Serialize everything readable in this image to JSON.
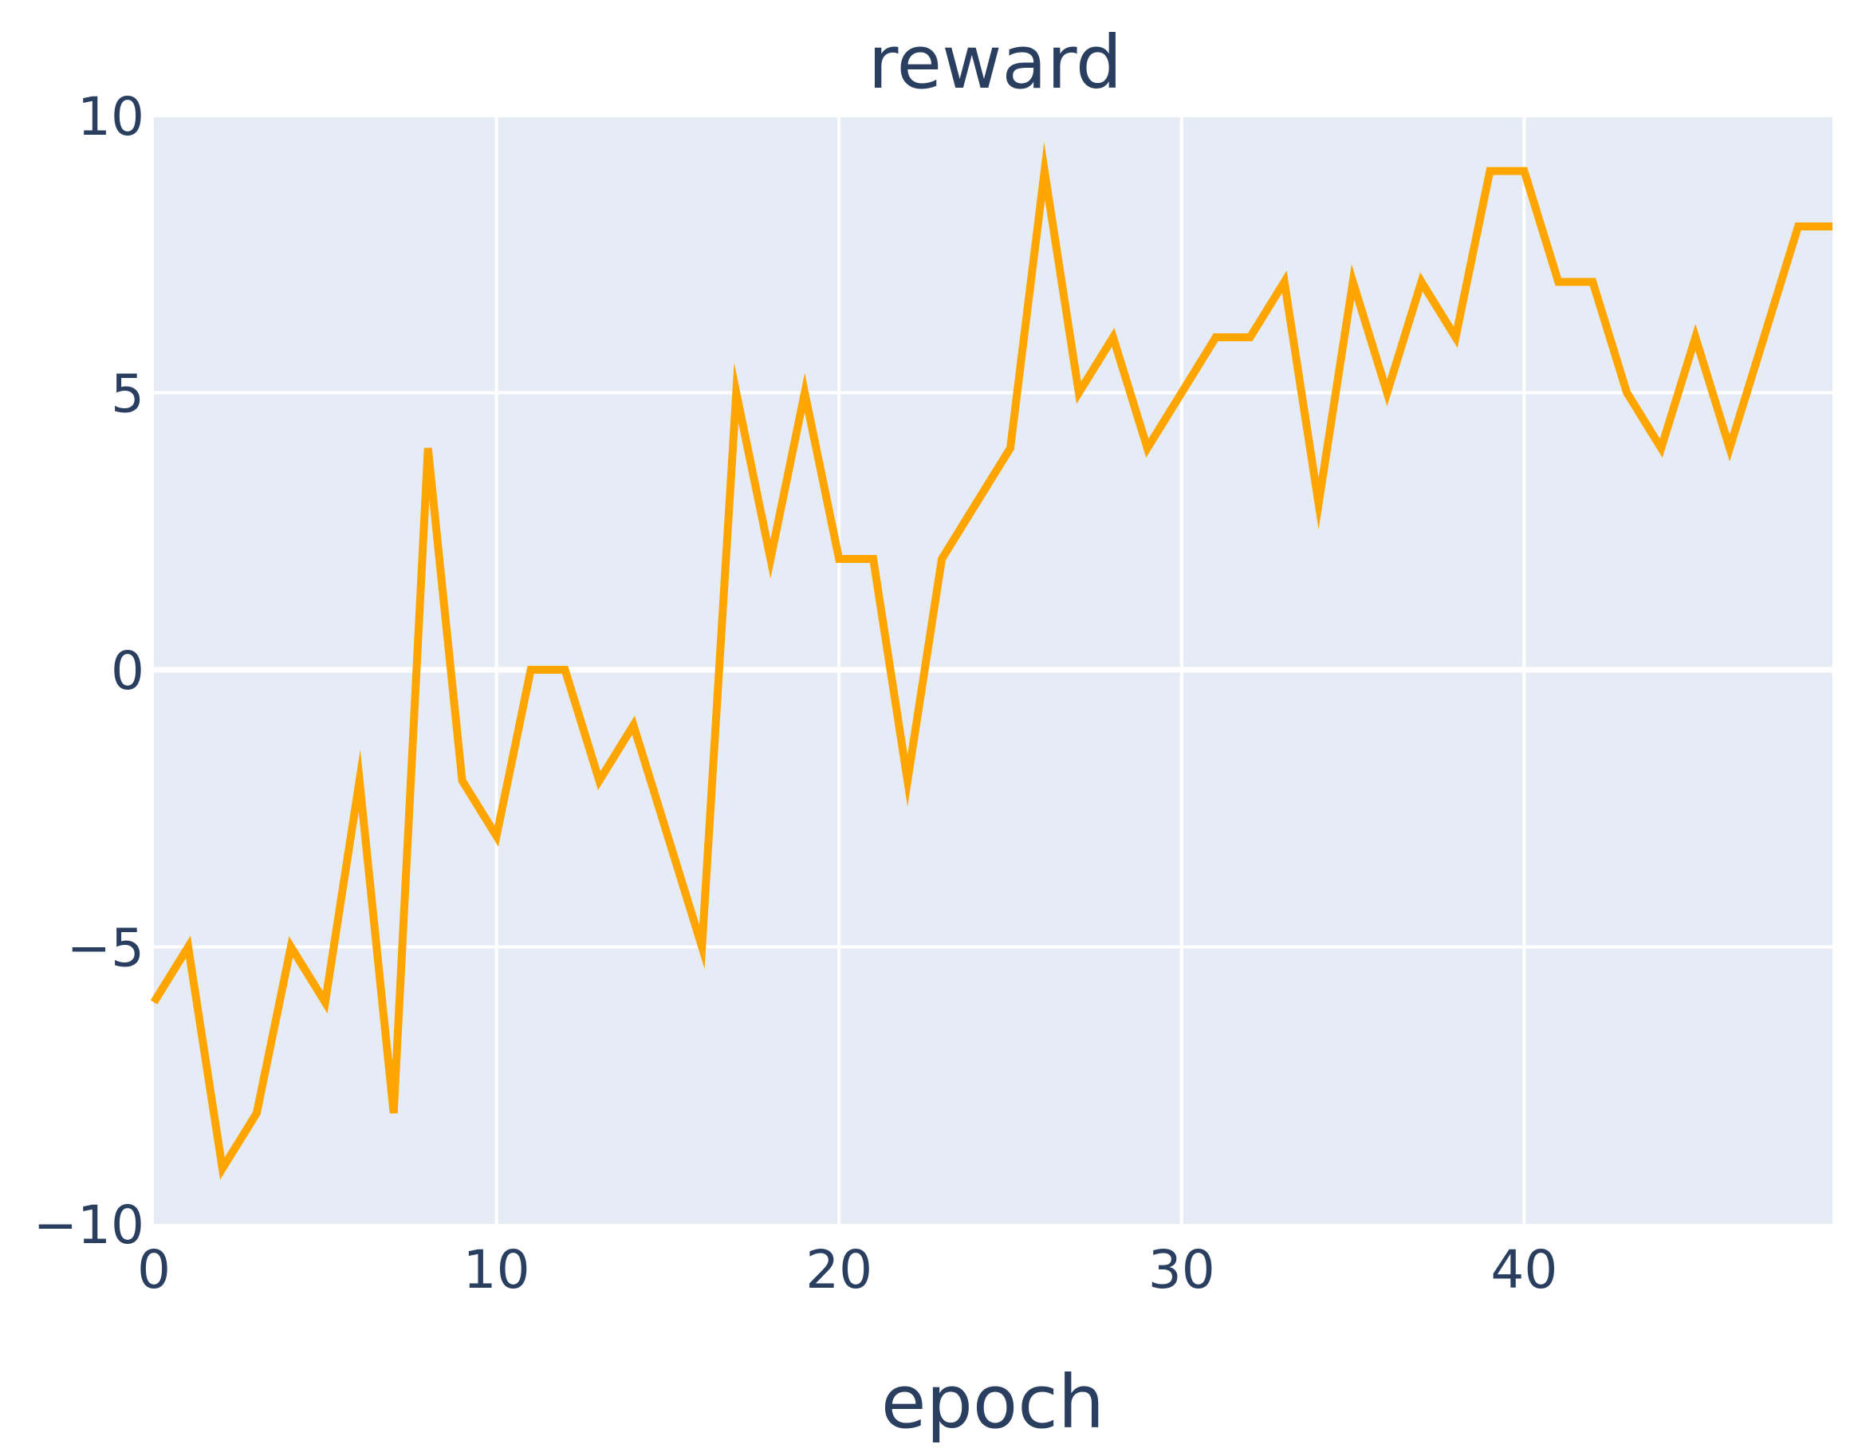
{
  "chart_data": {
    "type": "line",
    "title": "reward",
    "xlabel": "epoch",
    "ylabel": "",
    "xlim": [
      0,
      49
    ],
    "ylim": [
      -10,
      10
    ],
    "x_ticks": [
      0,
      10,
      20,
      30,
      40
    ],
    "x_tick_labels": [
      "0",
      "10",
      "20",
      "30",
      "40"
    ],
    "y_ticks": [
      -10,
      -5,
      0,
      5,
      10
    ],
    "y_tick_labels": [
      "−10",
      "−5",
      "0",
      "5",
      "10"
    ],
    "grid": true,
    "legend": false,
    "series": [
      {
        "color": "#ffa500",
        "x": [
          0,
          1,
          2,
          3,
          4,
          5,
          6,
          7,
          8,
          9,
          10,
          11,
          12,
          13,
          14,
          15,
          16,
          17,
          18,
          19,
          20,
          21,
          22,
          23,
          24,
          25,
          26,
          27,
          28,
          29,
          30,
          31,
          32,
          33,
          34,
          35,
          36,
          37,
          38,
          39,
          40,
          41,
          42,
          43,
          44,
          45,
          46,
          47,
          48,
          49
        ],
        "values": [
          -6,
          -5,
          -9,
          -8,
          -5,
          -6,
          -2,
          -8,
          4,
          -2,
          -3,
          0,
          0,
          -2,
          -1,
          -3,
          -5,
          5,
          2,
          5,
          2,
          2,
          -2,
          2,
          3,
          4,
          9,
          5,
          6,
          4,
          5,
          6,
          6,
          7,
          3,
          7,
          5,
          7,
          6,
          9,
          9,
          7,
          7,
          5,
          4,
          6,
          4,
          6,
          8,
          8
        ]
      }
    ]
  }
}
